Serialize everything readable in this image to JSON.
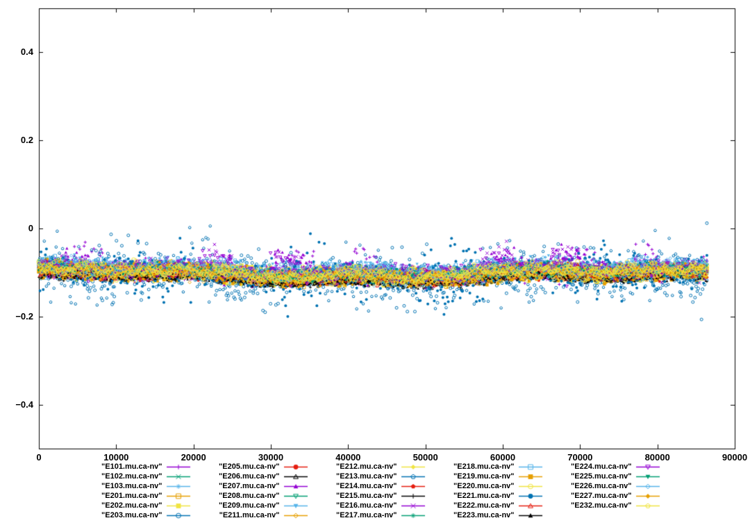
{
  "figure": {
    "background": "#ffffff",
    "border_color": "#000000"
  },
  "axes": {
    "x_tick_labels": [
      "0",
      "10000",
      "20000",
      "30000",
      "40000",
      "50000",
      "60000",
      "70000",
      "80000",
      "90000"
    ],
    "x_tick_values": [
      0,
      10000,
      20000,
      30000,
      40000,
      50000,
      60000,
      70000,
      80000,
      90000
    ],
    "y_tick_labels": [
      "0.4",
      "0.2",
      "0",
      "−0.2",
      "−0.4"
    ],
    "y_tick_values": [
      0.4,
      0.2,
      0,
      -0.2,
      -0.4
    ]
  },
  "chart_data": {
    "type": "scatter",
    "title": "",
    "xlabel": "",
    "ylabel": "",
    "xlim": [
      0,
      90000
    ],
    "ylim": [
      -0.5,
      0.5
    ],
    "grid": false,
    "legend_position": "below",
    "x_max_data": 86400,
    "points_per_series": 620,
    "band": {
      "center": -0.1,
      "trend": -0.004,
      "wave1_amp": 0.008,
      "wave1_cycles": 1.2,
      "wave2_amp": 0.004,
      "wave2_cycles": 4
    },
    "palette": [
      "#9400d3",
      "#009e73",
      "#56b4e9",
      "#e69f00",
      "#f0e442",
      "#0072b2",
      "#e51e10",
      "#000000"
    ],
    "series": [
      {
        "label": "\"E101.mu.ca-nv\"",
        "ci": 0,
        "marker": "plus",
        "off": 0.003,
        "sig": 0.01,
        "mode": "spike",
        "sz": 2.2
      },
      {
        "label": "\"E102.mu.ca-nv\"",
        "ci": 1,
        "marker": "cross",
        "off": 0.001,
        "sig": 0.007,
        "mode": "norm",
        "sz": 2.2
      },
      {
        "label": "\"E103.mu.ca-nv\"",
        "ci": 2,
        "marker": "star",
        "off": 0.005,
        "sig": 0.011,
        "mode": "norm",
        "sz": 2.2
      },
      {
        "label": "\"E201.mu.ca-nv\"",
        "ci": 3,
        "marker": "square-open",
        "off": -0.003,
        "sig": 0.009,
        "mode": "norm",
        "sz": 2.2
      },
      {
        "label": "\"E202.mu.ca-nv\"",
        "ci": 4,
        "marker": "square",
        "off": 0.0,
        "sig": 0.009,
        "mode": "norm",
        "sz": 3.0
      },
      {
        "label": "\"E203.mu.ca-nv\"",
        "ci": 5,
        "marker": "circle-open",
        "off": -0.005,
        "sig": 0.019,
        "mode": "wide",
        "sz": 2.0
      },
      {
        "label": "\"E205.mu.ca-nv\"",
        "ci": 6,
        "marker": "circle",
        "off": -0.002,
        "sig": 0.008,
        "mode": "norm",
        "sz": 2.2
      },
      {
        "label": "\"E206.mu.ca-nv\"",
        "ci": 7,
        "marker": "triangle-open",
        "off": -0.011,
        "sig": 0.006,
        "mode": "norm",
        "sz": 1.8
      },
      {
        "label": "\"E207.mu.ca-nv\"",
        "ci": 0,
        "marker": "triangle",
        "off": 0.003,
        "sig": 0.01,
        "mode": "spike",
        "sz": 2.2
      },
      {
        "label": "\"E208.mu.ca-nv\"",
        "ci": 1,
        "marker": "tridown-open",
        "off": 0.001,
        "sig": 0.007,
        "mode": "norm",
        "sz": 2.2
      },
      {
        "label": "\"E209.mu.ca-nv\"",
        "ci": 2,
        "marker": "tridown",
        "off": 0.005,
        "sig": 0.011,
        "mode": "norm",
        "sz": 2.2
      },
      {
        "label": "\"E211.mu.ca-nv\"",
        "ci": 3,
        "marker": "diamond-open",
        "off": -0.003,
        "sig": 0.009,
        "mode": "norm",
        "sz": 2.2
      },
      {
        "label": "\"E212.mu.ca-nv\"",
        "ci": 4,
        "marker": "diamond",
        "off": 0.0,
        "sig": 0.009,
        "mode": "norm",
        "sz": 3.0
      },
      {
        "label": "\"E213.mu.ca-nv\"",
        "ci": 5,
        "marker": "pentagon-open",
        "off": -0.005,
        "sig": 0.019,
        "mode": "wide",
        "sz": 2.0
      },
      {
        "label": "\"E214.mu.ca-nv\"",
        "ci": 6,
        "marker": "pentagon",
        "off": -0.002,
        "sig": 0.008,
        "mode": "norm",
        "sz": 2.2
      },
      {
        "label": "\"E215.mu.ca-nv\"",
        "ci": 7,
        "marker": "plus",
        "off": -0.011,
        "sig": 0.006,
        "mode": "norm",
        "sz": 1.8
      },
      {
        "label": "\"E216.mu.ca-nv\"",
        "ci": 0,
        "marker": "cross",
        "off": 0.003,
        "sig": 0.01,
        "mode": "spike",
        "sz": 2.2
      },
      {
        "label": "\"E217.mu.ca-nv\"",
        "ci": 1,
        "marker": "star",
        "off": 0.001,
        "sig": 0.007,
        "mode": "norm",
        "sz": 2.2
      },
      {
        "label": "\"E218.mu.ca-nv\"",
        "ci": 2,
        "marker": "square-open",
        "off": 0.005,
        "sig": 0.011,
        "mode": "norm",
        "sz": 2.2
      },
      {
        "label": "\"E219.mu.ca-nv\"",
        "ci": 3,
        "marker": "square",
        "off": -0.003,
        "sig": 0.009,
        "mode": "norm",
        "sz": 2.2
      },
      {
        "label": "\"E220.mu.ca-nv\"",
        "ci": 4,
        "marker": "circle-open",
        "off": 0.0,
        "sig": 0.009,
        "mode": "norm",
        "sz": 3.0
      },
      {
        "label": "\"E221.mu.ca-nv\"",
        "ci": 5,
        "marker": "circle",
        "off": -0.005,
        "sig": 0.019,
        "mode": "wide",
        "sz": 2.0
      },
      {
        "label": "\"E222.mu.ca-nv\"",
        "ci": 6,
        "marker": "triangle-open",
        "off": -0.002,
        "sig": 0.008,
        "mode": "norm",
        "sz": 2.2
      },
      {
        "label": "\"E223.mu.ca-nv\"",
        "ci": 7,
        "marker": "triangle",
        "off": -0.011,
        "sig": 0.006,
        "mode": "norm",
        "sz": 1.8
      },
      {
        "label": "\"E224.mu.ca-nv\"",
        "ci": 0,
        "marker": "tridown-open",
        "off": 0.003,
        "sig": 0.01,
        "mode": "spike",
        "sz": 2.2
      },
      {
        "label": "\"E225.mu.ca-nv\"",
        "ci": 1,
        "marker": "tridown",
        "off": 0.001,
        "sig": 0.007,
        "mode": "norm",
        "sz": 2.2
      },
      {
        "label": "\"E226.mu.ca-nv\"",
        "ci": 2,
        "marker": "diamond-open",
        "off": 0.005,
        "sig": 0.011,
        "mode": "norm",
        "sz": 2.2
      },
      {
        "label": "\"E227.mu.ca-nv\"",
        "ci": 3,
        "marker": "diamond",
        "off": -0.003,
        "sig": 0.009,
        "mode": "norm",
        "sz": 2.2
      },
      {
        "label": "\"E232.mu.ca-nv\"",
        "ci": 4,
        "marker": "pentagon-open",
        "off": 0.0,
        "sig": 0.009,
        "mode": "norm",
        "sz": 3.0
      }
    ],
    "legend_rows": 6,
    "legend_cols": 5
  }
}
